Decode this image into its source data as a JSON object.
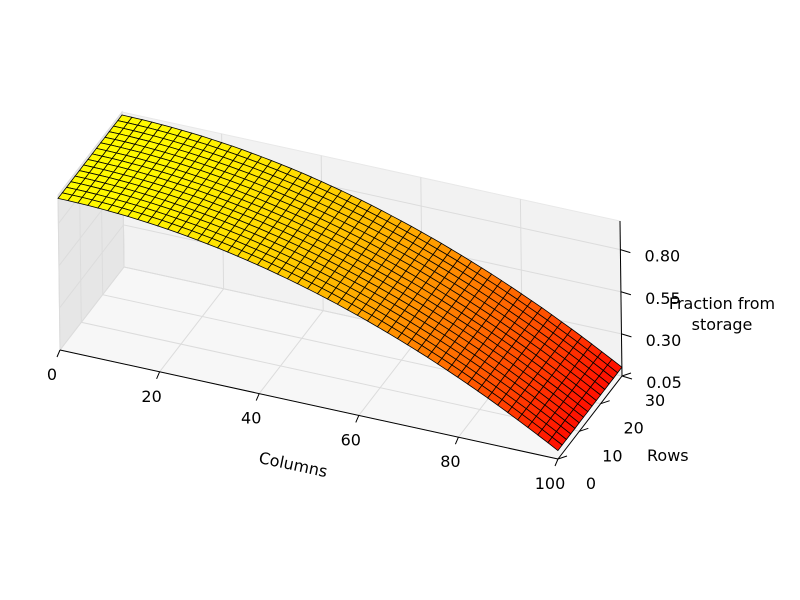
{
  "chart_data": {
    "type": "surface",
    "title": "",
    "xlabel": "Columns",
    "ylabel": "Rows",
    "zlabel_line1": "Fraction from",
    "zlabel_line2": "storage",
    "xlim": [
      0,
      100
    ],
    "ylim": [
      0,
      30
    ],
    "zlim": [
      0.05,
      0.97
    ],
    "x_ticks": [
      "0",
      "20",
      "40",
      "60",
      "80",
      "100"
    ],
    "y_ticks": [
      "0",
      "10",
      "20",
      "30"
    ],
    "z_ticks": [
      "0.05",
      "0.30",
      "0.55",
      "0.80"
    ],
    "grid": true,
    "colormap": "autumn_r",
    "mesh_edge_color": "#000000",
    "surface_function": "z = 0.95 - 0.85 * (x/100)^2, nearly constant along rows",
    "z_at_columns": {
      "x": [
        0,
        20,
        40,
        60,
        80,
        100
      ],
      "z": [
        0.95,
        0.916,
        0.814,
        0.644,
        0.406,
        0.1
      ]
    }
  }
}
